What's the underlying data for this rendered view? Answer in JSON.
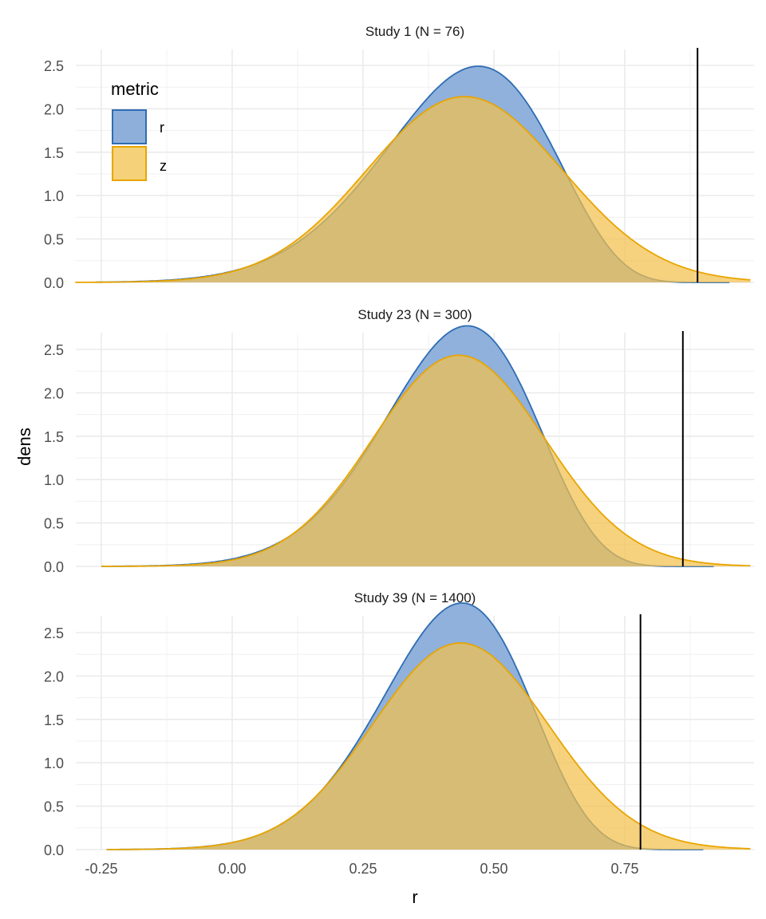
{
  "chart_data": {
    "type": "area",
    "title": "",
    "xlabel": "r",
    "ylabel": "dens",
    "xlim": [
      -0.3,
      0.99
    ],
    "ylim": [
      0,
      2.65
    ],
    "x_ticks": [
      -0.25,
      0.0,
      0.25,
      0.5,
      0.75
    ],
    "x_tick_labels": [
      "-0.25",
      "0.00",
      "0.25",
      "0.50",
      "0.75"
    ],
    "y_ticks": [
      0.0,
      0.5,
      1.0,
      1.5,
      2.0,
      2.5
    ],
    "y_tick_labels": [
      "0.0",
      "0.5",
      "1.0",
      "1.5",
      "2.0",
      "2.5"
    ],
    "grid": true,
    "legend": {
      "title": "metric",
      "placement": "top-left inside first panel",
      "entries": [
        {
          "label": "r",
          "fill": "#8EAFDA",
          "stroke": "#2E6DB4"
        },
        {
          "label": "z",
          "fill": "#F5D27A",
          "stroke": "#E8A500"
        }
      ]
    },
    "panels": [
      {
        "strip": "Study 1 (N = 76)",
        "vline": 0.889,
        "series": [
          {
            "name": "r",
            "model": "tanh-of-normal",
            "mu": 0.472,
            "sigma": 0.202,
            "range": [
              -0.26,
              0.95
            ],
            "peak_density": 2.27,
            "peak_at": 0.418
          },
          {
            "name": "z",
            "model": "normal",
            "mean": 0.444,
            "sd": 0.1864,
            "range": [
              -0.3,
              0.99
            ],
            "peak_density": 2.14
          }
        ]
      },
      {
        "strip": "Study 23 (N = 300)",
        "vline": 0.861,
        "series": [
          {
            "name": "r",
            "model": "tanh-of-normal",
            "mu": 0.455,
            "sigma": 0.178,
            "range": [
              -0.25,
              0.92
            ],
            "peak_density": 2.6,
            "peak_at": 0.405
          },
          {
            "name": "z",
            "model": "normal",
            "mean": 0.433,
            "sd": 0.164,
            "range": [
              -0.25,
              0.99
            ],
            "peak_density": 2.43
          }
        ]
      },
      {
        "strip": "Study 39 (N = 1400)",
        "vline": 0.78,
        "series": [
          {
            "name": "r",
            "model": "tanh-of-normal",
            "mu": 0.445,
            "sigma": 0.172,
            "range": [
              -0.24,
              0.9
            ],
            "peak_density": 2.65,
            "peak_at": 0.398
          },
          {
            "name": "z",
            "model": "normal",
            "mean": 0.436,
            "sd": 0.1676,
            "range": [
              -0.24,
              0.99
            ],
            "peak_density": 2.38
          }
        ]
      }
    ]
  }
}
